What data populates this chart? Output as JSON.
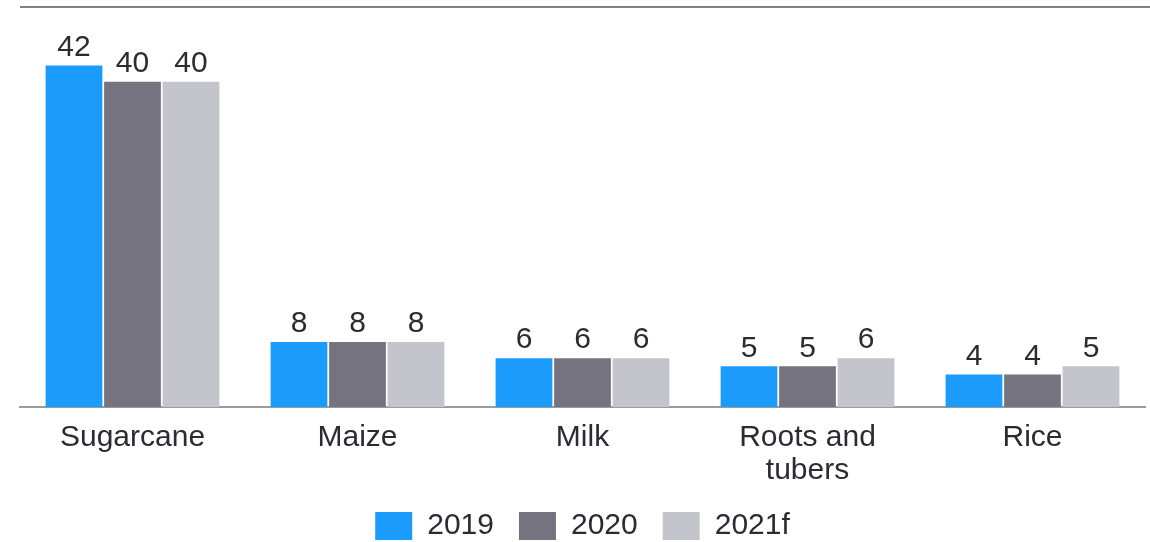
{
  "chart_data": {
    "type": "bar",
    "categories": [
      "Sugarcane",
      "Maize",
      "Milk",
      "Roots and tubers",
      "Rice"
    ],
    "series": [
      {
        "name": "2019",
        "color": "#1b9bfc",
        "values": [
          42,
          8,
          6,
          5,
          4
        ]
      },
      {
        "name": "2020",
        "color": "#74737f",
        "values": [
          40,
          8,
          6,
          5,
          4
        ]
      },
      {
        "name": "2021f",
        "color": "#c4c4cc",
        "values": [
          40,
          8,
          6,
          6,
          5
        ]
      }
    ],
    "data_labels": true,
    "legend": "bottom",
    "tick_labels": "x"
  }
}
